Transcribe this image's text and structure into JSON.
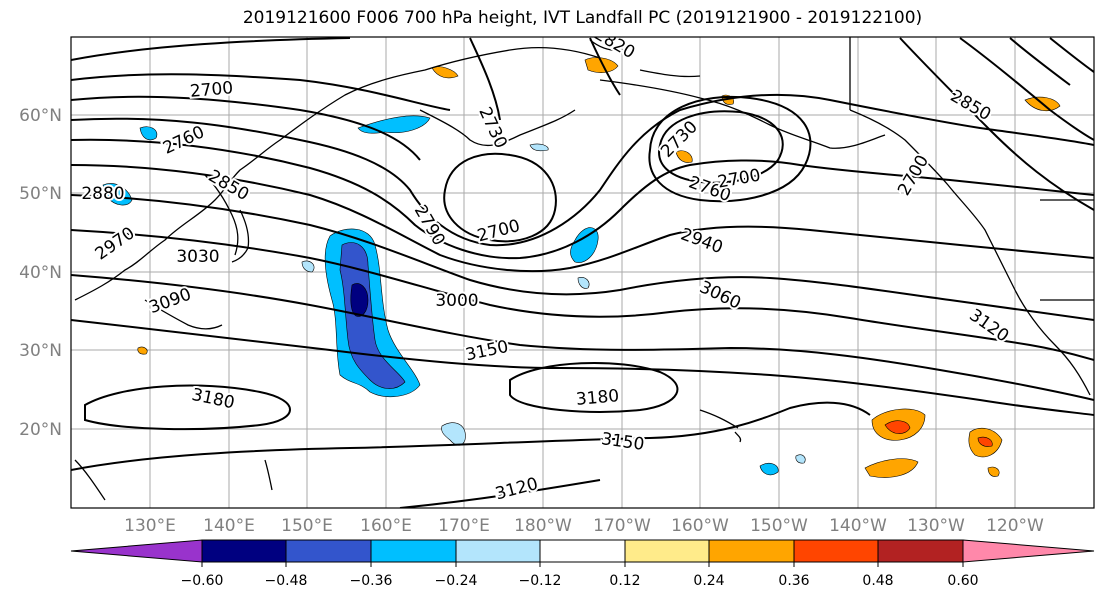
{
  "title": "2019121600 F006 700 hPa height, IVT Landfall PC (2019121900 - 2019122100)",
  "map": {
    "lon_labels": [
      "130°E",
      "140°E",
      "150°E",
      "160°E",
      "170°E",
      "180°W",
      "170°W",
      "160°W",
      "150°W",
      "140°W",
      "130°W",
      "120°W"
    ],
    "lat_labels": [
      "20°N",
      "30°N",
      "40°N",
      "50°N",
      "60°N"
    ],
    "contour_labels": [
      "2700",
      "2760",
      "2880",
      "2850",
      "2970",
      "3030",
      "3090",
      "2730",
      "2790",
      "2700",
      "3000",
      "3150",
      "3180",
      "3180",
      "3150",
      "3120",
      "2730",
      "2760",
      "2700",
      "2940",
      "3060",
      "3120",
      "2850",
      "2820",
      "2700"
    ],
    "axis_color": "#808080"
  },
  "colorbar": {
    "colors": [
      "#9933cc",
      "#000080",
      "#3355cc",
      "#00bfff",
      "#b3e5fc",
      "#ffffff",
      "#ffeb8a",
      "#ffa500",
      "#ff4500",
      "#b22222",
      "#ff88aa"
    ],
    "tick_labels": [
      "−0.60",
      "−0.48",
      "−0.36",
      "−0.24",
      "−0.12",
      "0.12",
      "0.24",
      "0.36",
      "0.48",
      "0.60"
    ]
  }
}
